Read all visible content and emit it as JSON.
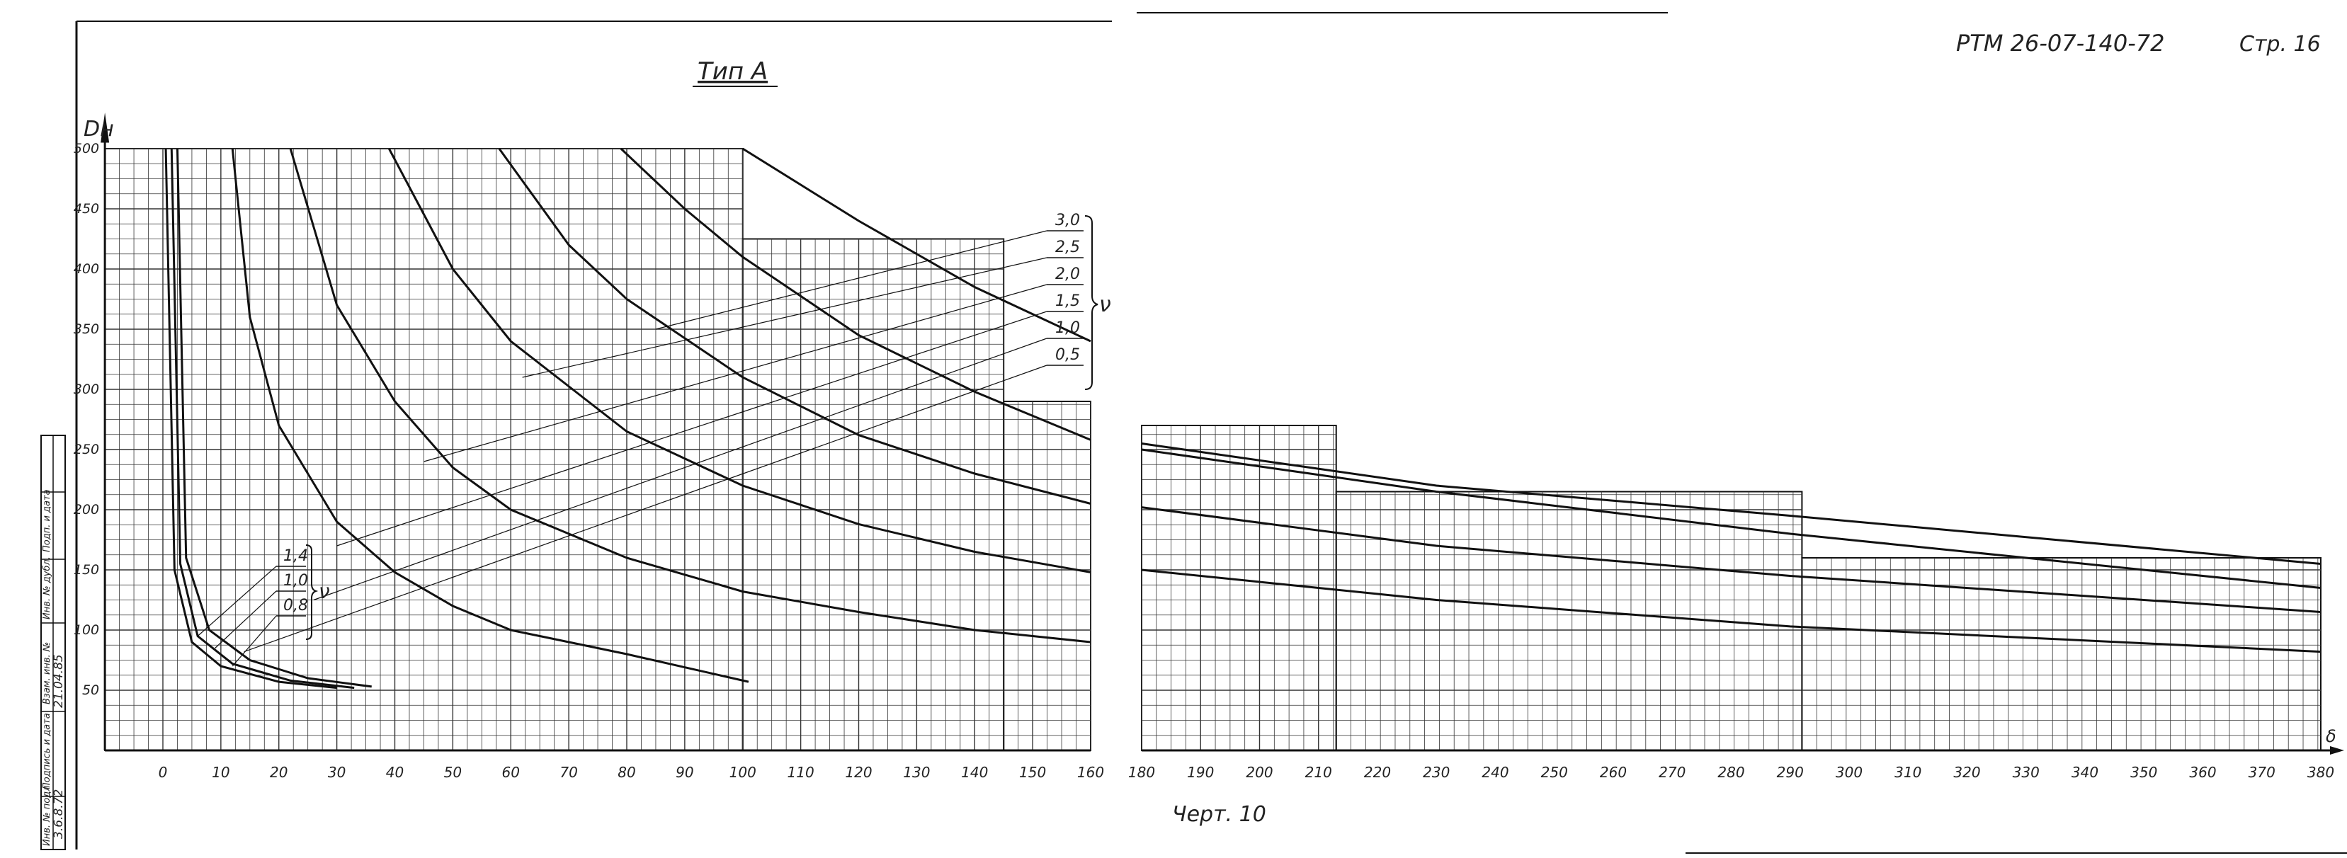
{
  "header": {
    "title": "Тип А",
    "doc_code": "РТМ 26-07-140-72",
    "page": "Стр. 16",
    "figure_label": "Черт. 10"
  },
  "stamp": {
    "cells": [
      "Инв. № подл.",
      "Подпись и дата",
      "Взам. инв. №",
      "Инв. № дубл.",
      "Подп. и дата"
    ],
    "handwritten": [
      "3.6.8.72",
      "21.04.85"
    ]
  },
  "chart_data": {
    "type": "line",
    "title": "Тип А",
    "ylabel": "Dн",
    "xlabel": "δ",
    "xlim": [
      -10,
      380
    ],
    "ylim": [
      0,
      500
    ],
    "x_ticks": [
      0,
      10,
      20,
      30,
      40,
      50,
      60,
      70,
      80,
      90,
      100,
      110,
      120,
      130,
      140,
      150,
      160,
      180,
      190,
      200,
      210,
      220,
      230,
      240,
      250,
      260,
      270,
      280,
      290,
      300,
      310,
      320,
      330,
      340,
      350,
      360,
      370,
      380
    ],
    "x_tick_labels": [
      "0",
      "10",
      "20",
      "30",
      "40",
      "50",
      "60",
      "70",
      "80",
      "90",
      "100",
      "110",
      "120",
      "130",
      "140",
      "150",
      "160",
      "180",
      "190",
      "200",
      "210",
      "220",
      "230",
      "240",
      "250",
      "260",
      "270",
      "280",
      "290",
      "300",
      "310",
      "320",
      "330",
      "340",
      "350",
      "360",
      "370",
      "380"
    ],
    "y_ticks": [
      50,
      100,
      150,
      200,
      250,
      300,
      350,
      400,
      450,
      500
    ],
    "grid": true,
    "legend_upper": {
      "symbol": "ν",
      "labels": [
        "3,0",
        "2,5",
        "2,0",
        "1,5",
        "1,0",
        "0,5"
      ]
    },
    "legend_lower": {
      "symbol": "ν",
      "labels": [
        "1,4",
        "1,0",
        "0,8"
      ]
    },
    "series": [
      {
        "name": "0,8",
        "points": [
          [
            0.5,
            500
          ],
          [
            2,
            150
          ],
          [
            5,
            90
          ],
          [
            10,
            70
          ],
          [
            20,
            57
          ],
          [
            30,
            52
          ]
        ]
      },
      {
        "name": "1,0",
        "points": [
          [
            1.5,
            500
          ],
          [
            3,
            155
          ],
          [
            6,
            95
          ],
          [
            12,
            72
          ],
          [
            22,
            58
          ],
          [
            33,
            52
          ]
        ]
      },
      {
        "name": "1,4",
        "points": [
          [
            2.5,
            500
          ],
          [
            4,
            160
          ],
          [
            8,
            100
          ],
          [
            15,
            75
          ],
          [
            25,
            60
          ],
          [
            36,
            53
          ]
        ]
      },
      {
        "name": "0,5",
        "points": [
          [
            12,
            500
          ],
          [
            15,
            360
          ],
          [
            20,
            270
          ],
          [
            30,
            190
          ],
          [
            40,
            148
          ],
          [
            50,
            120
          ],
          [
            60,
            100
          ],
          [
            80,
            80
          ],
          [
            101,
            57
          ]
        ]
      },
      {
        "name": "1,0",
        "points": [
          [
            22,
            500
          ],
          [
            30,
            370
          ],
          [
            40,
            290
          ],
          [
            50,
            235
          ],
          [
            60,
            200
          ],
          [
            80,
            160
          ],
          [
            100,
            132
          ],
          [
            120,
            115
          ],
          [
            140,
            100
          ],
          [
            160,
            90
          ]
        ]
      },
      {
        "name": "1,5",
        "points": [
          [
            39,
            500
          ],
          [
            50,
            400
          ],
          [
            60,
            340
          ],
          [
            80,
            265
          ],
          [
            100,
            220
          ],
          [
            120,
            188
          ],
          [
            140,
            165
          ],
          [
            160,
            148
          ],
          [
            180,
            150
          ],
          [
            230,
            125
          ],
          [
            290,
            103
          ],
          [
            380,
            82
          ]
        ]
      },
      {
        "name": "2,0",
        "points": [
          [
            58,
            500
          ],
          [
            70,
            420
          ],
          [
            80,
            375
          ],
          [
            100,
            310
          ],
          [
            120,
            262
          ],
          [
            140,
            230
          ],
          [
            160,
            205
          ],
          [
            180,
            202
          ],
          [
            230,
            170
          ],
          [
            290,
            145
          ],
          [
            380,
            115
          ]
        ]
      },
      {
        "name": "2,5",
        "points": [
          [
            79,
            500
          ],
          [
            90,
            450
          ],
          [
            100,
            410
          ],
          [
            120,
            345
          ],
          [
            140,
            298
          ],
          [
            160,
            258
          ],
          [
            180,
            255
          ],
          [
            230,
            220
          ],
          [
            290,
            195
          ],
          [
            380,
            155
          ]
        ]
      },
      {
        "name": "3,0",
        "points": [
          [
            100,
            500
          ],
          [
            120,
            440
          ],
          [
            140,
            385
          ],
          [
            160,
            340
          ],
          [
            180,
            250
          ],
          [
            230,
            215
          ],
          [
            290,
            180
          ],
          [
            380,
            135
          ]
        ]
      }
    ],
    "label_line_targets": {
      "3,0": [
        85,
        350
      ],
      "2,5": [
        62,
        310
      ],
      "2,0": [
        45,
        240
      ],
      "1,5": [
        30,
        170
      ],
      "1,0": [
        26,
        125
      ],
      "0,5": [
        14,
        82
      ],
      "1,4": [
        6,
        95
      ],
      "0,8": [
        12,
        70
      ]
    }
  }
}
